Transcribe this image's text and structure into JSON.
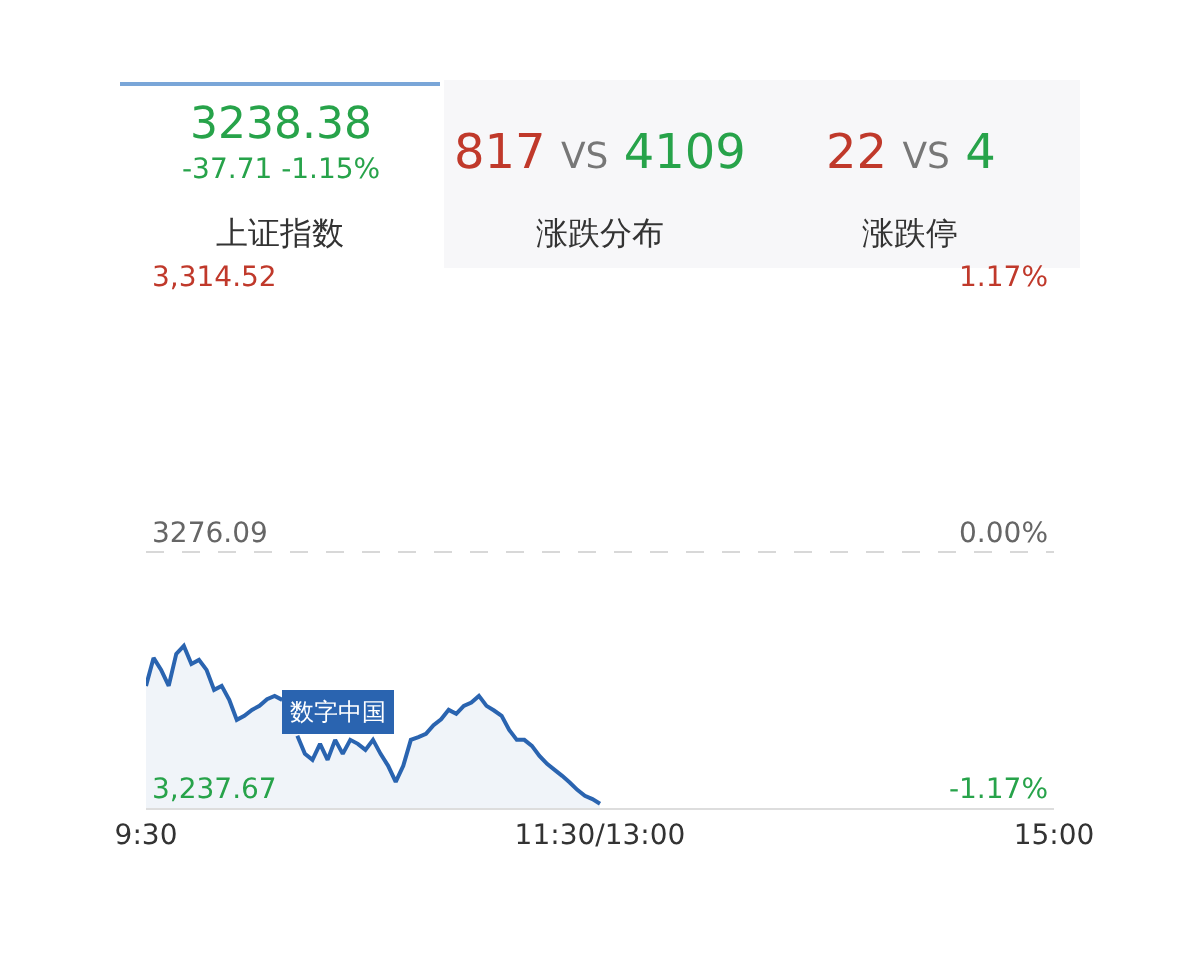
{
  "chart_data": {
    "type": "area",
    "annotations": [
      "3238.38",
      "-37.71 -1.15%",
      "上证指数",
      "817 VS 4109",
      "涨跌分布",
      "22 VS 4",
      "涨跌停",
      "数字中国"
    ],
    "categories": [
      "9:30",
      null,
      null,
      null,
      null,
      null,
      null,
      null,
      null,
      null,
      null,
      null,
      null,
      null,
      null,
      null,
      null,
      null,
      null,
      null,
      null,
      null,
      null,
      null,
      null,
      null,
      null,
      null,
      null,
      null,
      null,
      null,
      null,
      null,
      null,
      null,
      null,
      null,
      null,
      null,
      null,
      null,
      null,
      null,
      null,
      null,
      null,
      null,
      null,
      null,
      null,
      null,
      null,
      null,
      null,
      null,
      null,
      null,
      null,
      null,
      "11:30/13:00",
      null,
      null,
      null,
      null,
      null,
      null,
      null,
      null,
      null,
      null,
      null,
      null,
      null,
      null,
      null,
      null,
      null,
      null,
      null,
      null,
      null,
      null,
      null,
      null,
      null,
      null,
      null,
      null,
      null,
      null,
      null,
      null,
      null,
      null,
      null,
      null,
      null,
      null,
      null,
      null,
      null,
      null,
      null,
      null,
      null,
      null,
      null,
      null,
      null,
      null,
      null,
      null,
      null,
      null,
      null,
      null,
      null,
      null,
      null,
      "15:00"
    ],
    "series": [
      {
        "color": "#2a64b0",
        "values": [
          3256.0,
          3260.2,
          3258.4,
          3256.0,
          3260.8,
          3262.0,
          3259.3,
          3259.9,
          3258.4,
          3255.4,
          3256.0,
          3253.9,
          3250.9,
          3251.5,
          3252.4,
          3253.0,
          3254.0,
          3254.5,
          3253.9,
          null,
          3248.5,
          3245.8,
          3244.9,
          3247.3,
          3244.9,
          3247.9,
          3245.8,
          3247.9,
          3247.3,
          3246.4,
          3247.9,
          3245.8,
          3244.0,
          3241.6,
          3244.0,
          3247.9,
          3248.3,
          3248.8,
          3250.1,
          3251.0,
          3252.4,
          3251.8,
          3253.0,
          3253.5,
          3254.5,
          3253.0,
          3252.3,
          3251.5,
          3249.4,
          3247.9,
          3247.9,
          3247.0,
          3245.5,
          3244.3,
          3243.4,
          3242.5,
          3241.5,
          3240.4,
          3239.5,
          3239.0,
          3238.3,
          null,
          null,
          null,
          null,
          null,
          null,
          null,
          null,
          null,
          null,
          null,
          null,
          null,
          null,
          null,
          null,
          null,
          null,
          null,
          null,
          null,
          null,
          null,
          null,
          null,
          null,
          null,
          null,
          null,
          null,
          null,
          null,
          null,
          null,
          null,
          null,
          null,
          null,
          null,
          null,
          null,
          null,
          null,
          null,
          null,
          null,
          null,
          null,
          null,
          null,
          null,
          null,
          null,
          null,
          null,
          null,
          null,
          null,
          null,
          null
        ]
      }
    ],
    "ylim": [
      3237.67,
      3314.52
    ],
    "yticks": [
      {
        "value": 3237.67,
        "label": "3,237.67"
      },
      {
        "value": 3276.09,
        "label": "3276.09"
      },
      {
        "value": 3314.52,
        "label": "3,314.52"
      }
    ],
    "y2lim": [
      -1.17,
      1.17
    ],
    "y2ticks": [
      {
        "value": -1.17,
        "label": "-1.17%"
      },
      {
        "value": 0,
        "label": "0.00%"
      },
      {
        "value": 1.17,
        "label": "1.17%"
      }
    ],
    "grid": "y"
  }
}
